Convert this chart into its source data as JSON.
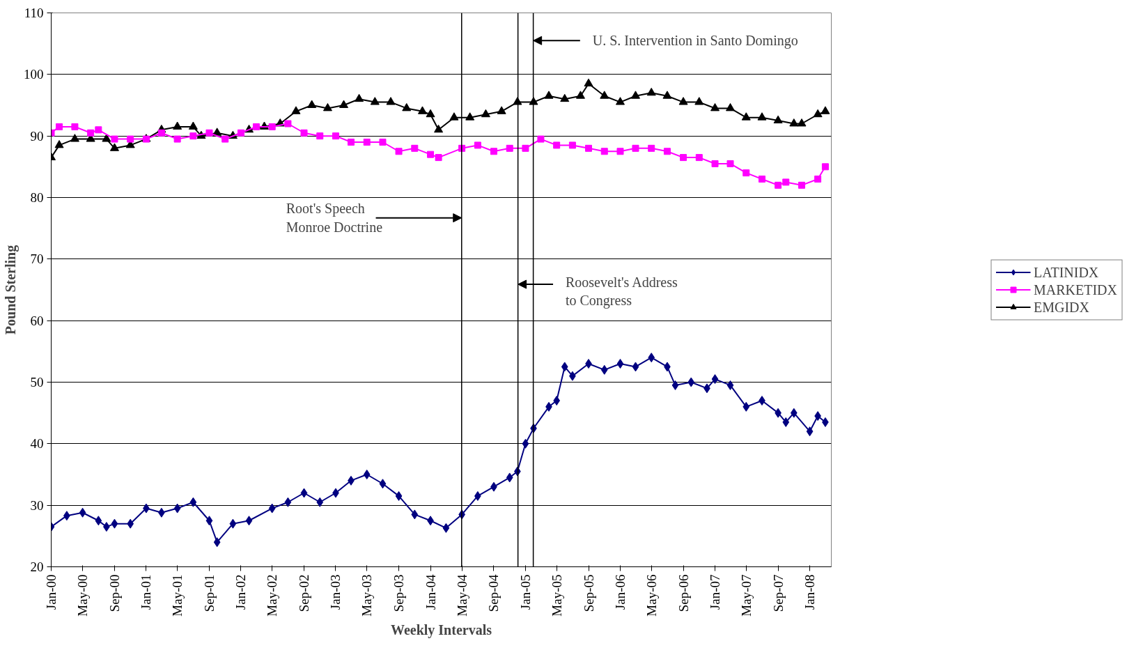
{
  "chart_data": {
    "type": "line",
    "xlabel": "Weekly Intervals",
    "ylabel": "Pound Sterling",
    "xlim": [
      "2000-01-01",
      "2008-03-24"
    ],
    "ylim": [
      20,
      110
    ],
    "yticks": [
      20,
      30,
      40,
      50,
      60,
      70,
      80,
      90,
      100,
      110
    ],
    "xticks": [
      {
        "value": "2000-01",
        "label": "Jan-00"
      },
      {
        "value": "2000-05",
        "label": "May-00"
      },
      {
        "value": "2000-09",
        "label": "Sep-00"
      },
      {
        "value": "2001-01",
        "label": "Jan-01"
      },
      {
        "value": "2001-05",
        "label": "May-01"
      },
      {
        "value": "2001-09",
        "label": "Sep-01"
      },
      {
        "value": "2002-01",
        "label": "Jan-02"
      },
      {
        "value": "2002-05",
        "label": "May-02"
      },
      {
        "value": "2002-09",
        "label": "Sep-02"
      },
      {
        "value": "2003-01",
        "label": "Jan-03"
      },
      {
        "value": "2003-05",
        "label": "May-03"
      },
      {
        "value": "2003-09",
        "label": "Sep-03"
      },
      {
        "value": "2004-01",
        "label": "Jan-04"
      },
      {
        "value": "2004-05",
        "label": "May-04"
      },
      {
        "value": "2004-09",
        "label": "Sep-04"
      },
      {
        "value": "2005-01",
        "label": "Jan-05"
      },
      {
        "value": "2005-05",
        "label": "May-05"
      },
      {
        "value": "2005-09",
        "label": "Sep-05"
      },
      {
        "value": "2006-01",
        "label": "Jan-06"
      },
      {
        "value": "2006-05",
        "label": "May-06"
      },
      {
        "value": "2006-09",
        "label": "Sep-06"
      },
      {
        "value": "2007-01",
        "label": "Jan-07"
      },
      {
        "value": "2007-05",
        "label": "May-07"
      },
      {
        "value": "2007-09",
        "label": "Sep-07"
      },
      {
        "value": "2008-01",
        "label": "Jan-08"
      }
    ],
    "grid": "y",
    "legend": "right",
    "series": [
      {
        "name": "LATINIDX",
        "color": "#000080",
        "marker": "diamond",
        "x": [
          "2000-01",
          "2000-03",
          "2000-05",
          "2000-07",
          "2000-08",
          "2000-09",
          "2000-11",
          "2001-01",
          "2001-03",
          "2001-05",
          "2001-07",
          "2001-09",
          "2001-10",
          "2001-12",
          "2002-02",
          "2002-05",
          "2002-07",
          "2002-09",
          "2002-11",
          "2003-01",
          "2003-03",
          "2003-05",
          "2003-07",
          "2003-09",
          "2003-11",
          "2004-01",
          "2004-03",
          "2004-05",
          "2004-07",
          "2004-09",
          "2004-11",
          "2004-12",
          "2005-01",
          "2005-02",
          "2005-04",
          "2005-05",
          "2005-06",
          "2005-07",
          "2005-09",
          "2005-11",
          "2006-01",
          "2006-03",
          "2006-05",
          "2006-07",
          "2006-08",
          "2006-10",
          "2006-12",
          "2007-01",
          "2007-03",
          "2007-05",
          "2007-07",
          "2007-09",
          "2007-10",
          "2007-11",
          "2008-01",
          "2008-02",
          "2008-03"
        ],
        "values": [
          26.5,
          28.3,
          28.8,
          27.5,
          26.5,
          27.0,
          27.0,
          29.5,
          28.8,
          29.5,
          30.5,
          27.5,
          24.0,
          27.0,
          27.5,
          29.5,
          30.5,
          32.0,
          30.5,
          32.0,
          34.0,
          35.0,
          33.5,
          31.5,
          28.5,
          27.5,
          26.3,
          28.5,
          31.5,
          33.0,
          34.5,
          35.5,
          40.0,
          42.5,
          46.0,
          47.0,
          52.5,
          51.0,
          53.0,
          52.0,
          53.0,
          52.5,
          54.0,
          52.5,
          49.5,
          50.0,
          49.0,
          50.5,
          49.5,
          46.0,
          47.0,
          45.0,
          43.5,
          45.0,
          42.0,
          44.5,
          43.5
        ]
      },
      {
        "name": "MARKETIDX",
        "color": "#ff00ff",
        "marker": "square",
        "x": [
          "2000-01",
          "2000-02",
          "2000-04",
          "2000-06",
          "2000-07",
          "2000-09",
          "2000-11",
          "2001-01",
          "2001-03",
          "2001-05",
          "2001-07",
          "2001-09",
          "2001-11",
          "2002-01",
          "2002-03",
          "2002-05",
          "2002-07",
          "2002-09",
          "2002-11",
          "2003-01",
          "2003-03",
          "2003-05",
          "2003-07",
          "2003-09",
          "2003-11",
          "2004-01",
          "2004-02",
          "2004-05",
          "2004-07",
          "2004-09",
          "2004-11",
          "2005-01",
          "2005-03",
          "2005-05",
          "2005-07",
          "2005-09",
          "2005-11",
          "2006-01",
          "2006-03",
          "2006-05",
          "2006-07",
          "2006-09",
          "2006-11",
          "2007-01",
          "2007-03",
          "2007-05",
          "2007-07",
          "2007-09",
          "2007-10",
          "2007-12",
          "2008-02",
          "2008-03"
        ],
        "values": [
          90.5,
          91.5,
          91.5,
          90.5,
          91.0,
          89.5,
          89.5,
          89.5,
          90.5,
          89.5,
          90.0,
          90.5,
          89.5,
          90.5,
          91.5,
          91.5,
          92.0,
          90.5,
          90.0,
          90.0,
          89.0,
          89.0,
          89.0,
          87.5,
          88.0,
          87.0,
          86.5,
          88.0,
          88.5,
          87.5,
          88.0,
          88.0,
          89.5,
          88.5,
          88.5,
          88.0,
          87.5,
          87.5,
          88.0,
          88.0,
          87.5,
          86.5,
          86.5,
          85.5,
          85.5,
          84.0,
          83.0,
          82.0,
          82.5,
          82.0,
          83.0,
          85.0
        ]
      },
      {
        "name": "EMGIDX",
        "color": "#000000",
        "marker": "triangle",
        "x": [
          "2000-01",
          "2000-02",
          "2000-04",
          "2000-06",
          "2000-08",
          "2000-09",
          "2000-11",
          "2001-01",
          "2001-03",
          "2001-05",
          "2001-07",
          "2001-08",
          "2001-10",
          "2001-12",
          "2002-02",
          "2002-04",
          "2002-06",
          "2002-08",
          "2002-10",
          "2002-12",
          "2003-02",
          "2003-04",
          "2003-06",
          "2003-08",
          "2003-10",
          "2003-12",
          "2004-01",
          "2004-02",
          "2004-04",
          "2004-06",
          "2004-08",
          "2004-10",
          "2004-12",
          "2005-02",
          "2005-04",
          "2005-06",
          "2005-08",
          "2005-09",
          "2005-11",
          "2006-01",
          "2006-03",
          "2006-05",
          "2006-07",
          "2006-09",
          "2006-11",
          "2007-01",
          "2007-03",
          "2007-05",
          "2007-07",
          "2007-09",
          "2007-11",
          "2007-12",
          "2008-02",
          "2008-03"
        ],
        "values": [
          86.5,
          88.5,
          89.5,
          89.5,
          89.5,
          88.0,
          88.5,
          89.5,
          91.0,
          91.5,
          91.5,
          90.0,
          90.5,
          90.0,
          91.0,
          91.5,
          92.0,
          94.0,
          95.0,
          94.5,
          95.0,
          96.0,
          95.5,
          95.5,
          94.5,
          94.0,
          93.5,
          91.0,
          93.0,
          93.0,
          93.5,
          94.0,
          95.5,
          95.5,
          96.5,
          96.0,
          96.5,
          98.5,
          96.5,
          95.5,
          96.5,
          97.0,
          96.5,
          95.5,
          95.5,
          94.5,
          94.5,
          93.0,
          93.0,
          92.5,
          92.0,
          92.0,
          93.5,
          94.0
        ]
      }
    ],
    "ref_lines": [
      {
        "axis": "x",
        "value": "2004-04-30",
        "color": "#000000",
        "label": "Root's Speech\nMonroe Doctrine"
      },
      {
        "axis": "x",
        "value": "2004-12-03",
        "color": "#000000",
        "label": "Roosevelt's Address\nto Congress"
      },
      {
        "axis": "x",
        "value": "2005-01-31",
        "color": "#000000",
        "label": "U. S. Intervention in Santo Domingo"
      }
    ]
  }
}
